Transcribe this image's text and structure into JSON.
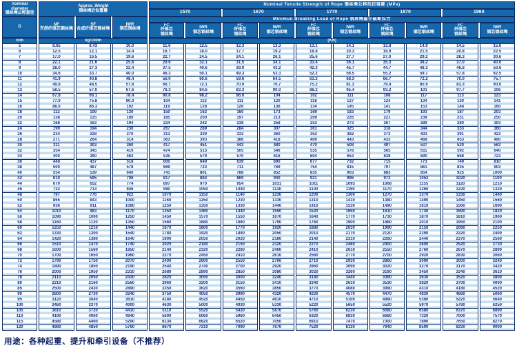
{
  "header": {
    "diameter_label": "nominal\ndiameter\n钢丝绳公称直径",
    "diameter_symbol": "D",
    "diameter_unit": "mm",
    "weight_group_label": "Approx. Weight\n钢丝绳近似重量",
    "weight_unit": "kg/100m",
    "nf_label": "NF\n天然纤维芯钢丝绳",
    "sf_label": "SF\n合成纤维芯钢丝绳",
    "iwr_label": "IWR\n钢芯钢丝绳",
    "strength_title": "Nominal  Tensile  Strength  of  Rope  钢丝绳公称抗拉强度  (MPa)",
    "grades": [
      "1570",
      "1670",
      "1770",
      "1870",
      "1960"
    ],
    "breaking_title": "Minimun  Breaking  Load  of  Rope  钢丝绳最小破断拉力",
    "fc_sub_label": "FC\n纤维芯\n钢丝绳",
    "iwr_sub_label": "IWR\n钢芯钢丝绳",
    "load_unit": "(KN)"
  },
  "colors": {
    "header_blue": "#1667ab",
    "border_navy": "#0d2d66",
    "stripe_blue": "#c6def2",
    "value_text": "#1d2f7e"
  },
  "table": {
    "columns": [
      "mm",
      "NF",
      "SF",
      "IWR",
      "FC1570",
      "IWR1570",
      "FC1670",
      "IWR1670",
      "FC1770",
      "IWR1770",
      "FC1870",
      "IWR1870",
      "FC1960",
      "IWR1960"
    ],
    "rows": [
      [
        "5",
        "8.65",
        "8.43",
        "10.0",
        "11.6",
        "12.5",
        "12.3",
        "13.3",
        "13.1",
        "14.1",
        "13.8",
        "14.9",
        "14.5",
        "15.6"
      ],
      [
        "6",
        "12.5",
        "12.1",
        "14.4",
        "16.7",
        "18.0",
        "17.7",
        "19.2",
        "18.8",
        "20.3",
        "19.9",
        "21.5",
        "20.8",
        "22.5"
      ],
      [
        "7",
        "17.0",
        "16.5",
        "19.6",
        "22.7",
        "24.5",
        "24.1",
        "26.1",
        "25.6",
        "27.7",
        "27.0",
        "29.2",
        "28.3",
        "30.6"
      ],
      [
        "8",
        "22.1",
        "21.6",
        "25.6",
        "29.6",
        "32.1",
        "31.5",
        "34.1",
        "33.4",
        "36.1",
        "35.3",
        "38.2",
        "37.0",
        "40.0"
      ],
      [
        "9",
        "28.0",
        "27.3",
        "32.4",
        "37.5",
        "40.6",
        "39.9",
        "43.2",
        "42.3",
        "45.7",
        "44.7",
        "48.3",
        "46.8",
        "50.6"
      ],
      [
        "10",
        "34.6",
        "33.7",
        "40.0",
        "46.3",
        "50.1",
        "49.3",
        "53.3",
        "52.2",
        "56.5",
        "55.2",
        "59.7",
        "57.8",
        "62.5"
      ],
      [
        "11",
        "41.9",
        "40.8",
        "48.4",
        "56.0",
        "60.6",
        "59.6",
        "64.5",
        "63.2",
        "68.3",
        "66.7",
        "72.2",
        "70.0",
        "75.7"
      ],
      [
        "12",
        "49.8",
        "48.5",
        "57.6",
        "66.7",
        "72.1",
        "70.9",
        "76.7",
        "75.2",
        "81.3",
        "79.4",
        "85.9",
        "83.3",
        "90.0"
      ],
      [
        "13",
        "58.5",
        "57.0",
        "67.6",
        "78.3",
        "84.6",
        "83.3",
        "90.0",
        "88.2",
        "95.4",
        "93.2",
        "101",
        "97.7",
        "106"
      ],
      [
        "14",
        "67.8",
        "66.1",
        "78.4",
        "90.8",
        "98.2",
        "96.6",
        "104",
        "102",
        "111",
        "108",
        "117",
        "113",
        "123"
      ],
      [
        "15",
        "77.9",
        "75.8",
        "90.0",
        "104",
        "113",
        "111",
        "120",
        "118",
        "127",
        "124",
        "134",
        "130",
        "141"
      ],
      [
        "16",
        "88.6",
        "86.3",
        "102",
        "119",
        "128",
        "126",
        "136",
        "134",
        "145",
        "141",
        "153",
        "148",
        "160"
      ],
      [
        "18",
        "112",
        "109",
        "130",
        "150",
        "162",
        "160",
        "173",
        "169",
        "183",
        "179",
        "193",
        "187",
        "203"
      ],
      [
        "20",
        "138",
        "135",
        "160",
        "185",
        "200",
        "197",
        "213",
        "209",
        "226",
        "221",
        "239",
        "231",
        "250"
      ],
      [
        "22",
        "168",
        "163",
        "194",
        "224",
        "242",
        "238",
        "258",
        "253",
        "273",
        "267",
        "289",
        "280",
        "303"
      ],
      [
        "24",
        "199",
        "194",
        "230",
        "267",
        "289",
        "284",
        "307",
        "301",
        "325",
        "318",
        "344",
        "333",
        "360"
      ],
      [
        "26",
        "234",
        "228",
        "270",
        "313",
        "339",
        "333",
        "360",
        "353",
        "382",
        "373",
        "403",
        "391",
        "423"
      ],
      [
        "28",
        "271",
        "264",
        "314",
        "363",
        "393",
        "386",
        "418",
        "409",
        "443",
        "433",
        "468",
        "453",
        "490"
      ],
      [
        "30",
        "311",
        "303",
        "360",
        "417",
        "451",
        "443",
        "480",
        "470",
        "508",
        "497",
        "537",
        "520",
        "563"
      ],
      [
        "32",
        "354",
        "345",
        "410",
        "474",
        "513",
        "505",
        "546",
        "535",
        "578",
        "565",
        "611",
        "592",
        "640"
      ],
      [
        "34",
        "400",
        "390",
        "462",
        "535",
        "579",
        "570",
        "616",
        "604",
        "653",
        "638",
        "690",
        "668",
        "723"
      ],
      [
        "36",
        "448",
        "437",
        "518",
        "600",
        "649",
        "639",
        "690",
        "677",
        "732",
        "715",
        "773",
        "749",
        "810"
      ],
      [
        "38",
        "500",
        "487",
        "578",
        "669",
        "723",
        "711",
        "769",
        "754",
        "815",
        "797",
        "861",
        "835",
        "903"
      ],
      [
        "40",
        "554",
        "539",
        "640",
        "741",
        "801",
        "788",
        "852",
        "835",
        "903",
        "883",
        "954",
        "925",
        "1000"
      ],
      [
        "42",
        "610",
        "595",
        "706",
        "817",
        "884",
        "869",
        "940",
        "921",
        "996",
        "973",
        "1052",
        "1020",
        "1100"
      ],
      [
        "44",
        "670",
        "652",
        "774",
        "897",
        "970",
        "954",
        "1031",
        "1011",
        "1093",
        "1068",
        "1155",
        "1120",
        "1210"
      ],
      [
        "46",
        "732",
        "713",
        "846",
        "980",
        "1050",
        "1040",
        "1130",
        "1100",
        "1190",
        "1170",
        "1260",
        "1220",
        "1320"
      ],
      [
        "48",
        "797",
        "776",
        "922",
        "1070",
        "1150",
        "1140",
        "1230",
        "1200",
        "1300",
        "1270",
        "1370",
        "1330",
        "1440"
      ],
      [
        "50",
        "865",
        "843",
        "1000",
        "1160",
        "1250",
        "1230",
        "1330",
        "1310",
        "1410",
        "1380",
        "1490",
        "1450",
        "1560"
      ],
      [
        "52",
        "936",
        "911",
        "1080",
        "1250",
        "1350",
        "1330",
        "1440",
        "1410",
        "1530",
        "1490",
        "1610",
        "1560",
        "1690"
      ],
      [
        "54",
        "1010",
        "983",
        "1170",
        "1350",
        "1460",
        "1440",
        "1550",
        "1520",
        "1650",
        "1610",
        "1740",
        "1690",
        "1820"
      ],
      [
        "56",
        "1090",
        "1060",
        "1250",
        "1450",
        "1570",
        "1550",
        "1670",
        "1640",
        "1770",
        "1730",
        "1870",
        "1810",
        "1960"
      ],
      [
        "58",
        "1160",
        "1130",
        "1350",
        "1560",
        "1680",
        "1660",
        "1790",
        "1760",
        "1900",
        "1860",
        "2010",
        "1950",
        "2100"
      ],
      [
        "60",
        "1250",
        "1210",
        "1440",
        "1670",
        "1800",
        "1770",
        "1920",
        "1880",
        "2030",
        "1990",
        "2150",
        "2080",
        "2250"
      ],
      [
        "62",
        "1330",
        "1300",
        "1540",
        "1780",
        "1920",
        "1890",
        "2050",
        "2010",
        "2170",
        "2120",
        "2290",
        "2220",
        "2400"
      ],
      [
        "64",
        "1420",
        "1380",
        "1640",
        "1900",
        "2050",
        "2020",
        "2180",
        "2140",
        "2310",
        "2260",
        "2440",
        "2370",
        "2560"
      ],
      [
        "66",
        "1510",
        "1470",
        "1740",
        "2020",
        "2180",
        "2150",
        "2320",
        "2270",
        "2460",
        "2400",
        "2600",
        "2520",
        "2720"
      ],
      [
        "68",
        "1600",
        "1560",
        "1850",
        "2140",
        "2320",
        "2280",
        "2460",
        "2410",
        "2610",
        "2550",
        "2760",
        "2670",
        "2890"
      ],
      [
        "70",
        "1700",
        "1650",
        "1960",
        "2270",
        "2450",
        "2410",
        "2610",
        "2560",
        "2770",
        "2700",
        "2920",
        "2830",
        "3060"
      ],
      [
        "72",
        "1790",
        "1750",
        "2070",
        "2400",
        "2600",
        "2550",
        "2760",
        "2710",
        "2930",
        "2860",
        "3090",
        "3000",
        "3240"
      ],
      [
        "74",
        "1890",
        "1850",
        "2190",
        "2540",
        "2740",
        "2700",
        "2920",
        "2860",
        "3090",
        "3020",
        "3270",
        "3170",
        "3420"
      ],
      [
        "76",
        "2000",
        "1950",
        "2310",
        "2680",
        "2890",
        "2850",
        "3080",
        "3020",
        "3260",
        "3190",
        "3450",
        "3340",
        "3610"
      ],
      [
        "78",
        "2110",
        "2050",
        "2430",
        "2820",
        "3050",
        "3000",
        "3240",
        "3180",
        "3440",
        "3360",
        "3630",
        "3520",
        "3800"
      ],
      [
        "80",
        "2210",
        "2160",
        "2560",
        "2960",
        "3200",
        "3150",
        "3410",
        "3340",
        "3610",
        "3530",
        "3820",
        "3700",
        "4000"
      ],
      [
        "85",
        "2500",
        "2430",
        "2890",
        "3350",
        "3620",
        "3560",
        "3850",
        "3770",
        "4080",
        "3990",
        "4310",
        "4180",
        "4520"
      ],
      [
        "90",
        "2800",
        "2730",
        "3240",
        "3750",
        "4050",
        "3990",
        "4320",
        "4230",
        "4570",
        "4470",
        "4830",
        "4680",
        "5060"
      ],
      [
        "95",
        "3120",
        "3040",
        "3610",
        "4180",
        "4520",
        "4450",
        "4810",
        "4710",
        "5100",
        "4980",
        "5380",
        "5220",
        "5640"
      ],
      [
        "100",
        "3460",
        "3370",
        "4000",
        "4630",
        "5000",
        "4930",
        "5330",
        "5220",
        "5650",
        "5520",
        "5970",
        "5780",
        "6250"
      ],
      [
        "105",
        "3810",
        "3720",
        "4410",
        "5110",
        "5520",
        "5430",
        "5870",
        "5760",
        "6230",
        "6080",
        "6580",
        "6370",
        "6890"
      ],
      [
        "110",
        "4190",
        "4060",
        "4840",
        "5600",
        "6060",
        "5960",
        "6450",
        "6320",
        "6830",
        "6680",
        "7320",
        "7000",
        "7570"
      ],
      [
        "115",
        "4580",
        "4460",
        "5290",
        "6130",
        "6620",
        "6520",
        "7050",
        "6910",
        "7470",
        "7300",
        "7890",
        "7650",
        "8270"
      ],
      [
        "120",
        "4980",
        "4850",
        "5760",
        "6670",
        "7210",
        "7090",
        "7670",
        "7520",
        "8130",
        "7940",
        "8590",
        "8330",
        "9000"
      ]
    ]
  },
  "footer": {
    "usage": "用途：各种起重、提升和牵引设备（不推荐）"
  }
}
